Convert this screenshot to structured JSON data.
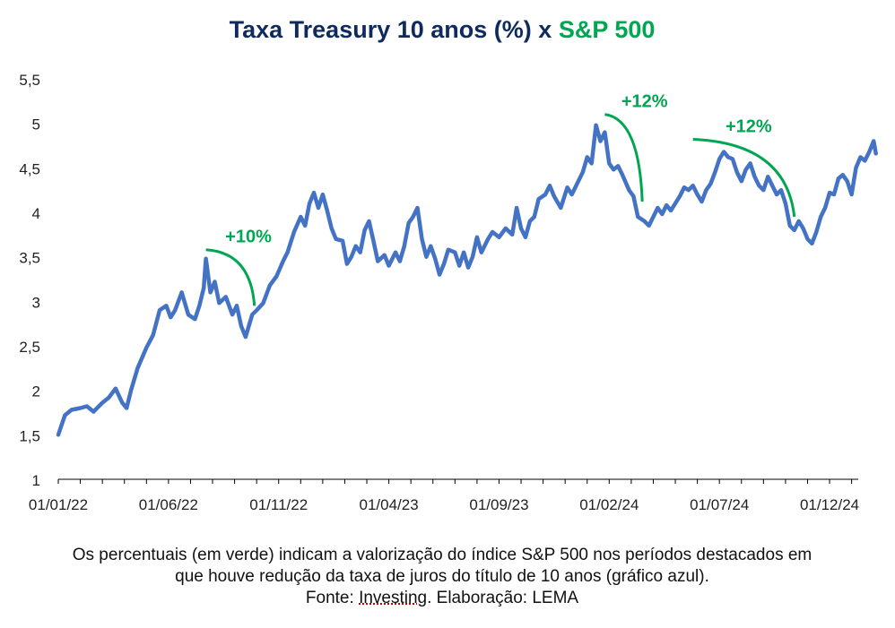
{
  "title": {
    "part1": "Taxa Treasury 10 anos (%)",
    "part2": " x ",
    "part3": "S&P 500",
    "color_main": "#0f2a5c",
    "color_accent": "#00a651"
  },
  "chart_data": {
    "type": "line",
    "title": "Taxa Treasury 10 anos (%) x S&P 500",
    "xlabel": "",
    "ylabel": "",
    "ylim": [
      1,
      5.5
    ],
    "y_ticks": [
      "1",
      "1,5",
      "2",
      "2,5",
      "3",
      "3,5",
      "4",
      "4,5",
      "5",
      "5,5"
    ],
    "x_ticks": [
      "01/01/22",
      "01/06/22",
      "01/11/22",
      "01/04/23",
      "01/09/23",
      "01/02/24",
      "01/07/24",
      "01/12/24"
    ],
    "x_range_months": [
      0,
      36.3
    ],
    "grid": false,
    "series": [
      {
        "color": "#4472c4",
        "points": [
          [
            0.0,
            1.5
          ],
          [
            0.3,
            1.72
          ],
          [
            0.6,
            1.78
          ],
          [
            1.0,
            1.8
          ],
          [
            1.3,
            1.82
          ],
          [
            1.6,
            1.76
          ],
          [
            2.0,
            1.86
          ],
          [
            2.3,
            1.92
          ],
          [
            2.6,
            2.02
          ],
          [
            2.9,
            1.86
          ],
          [
            3.1,
            1.8
          ],
          [
            3.3,
            2.0
          ],
          [
            3.6,
            2.25
          ],
          [
            4.0,
            2.48
          ],
          [
            4.3,
            2.62
          ],
          [
            4.6,
            2.9
          ],
          [
            4.9,
            2.95
          ],
          [
            5.1,
            2.82
          ],
          [
            5.3,
            2.9
          ],
          [
            5.6,
            3.1
          ],
          [
            5.9,
            2.85
          ],
          [
            6.2,
            2.8
          ],
          [
            6.4,
            2.95
          ],
          [
            6.6,
            3.15
          ],
          [
            6.7,
            3.48
          ],
          [
            6.9,
            3.1
          ],
          [
            7.1,
            3.22
          ],
          [
            7.3,
            2.98
          ],
          [
            7.6,
            3.05
          ],
          [
            7.9,
            2.85
          ],
          [
            8.1,
            2.95
          ],
          [
            8.3,
            2.72
          ],
          [
            8.5,
            2.6
          ],
          [
            8.8,
            2.85
          ],
          [
            9.0,
            2.9
          ],
          [
            9.3,
            2.98
          ],
          [
            9.6,
            3.18
          ],
          [
            9.9,
            3.28
          ],
          [
            10.2,
            3.45
          ],
          [
            10.4,
            3.55
          ],
          [
            10.7,
            3.78
          ],
          [
            11.0,
            3.95
          ],
          [
            11.2,
            3.85
          ],
          [
            11.4,
            4.1
          ],
          [
            11.6,
            4.22
          ],
          [
            11.8,
            4.05
          ],
          [
            12.0,
            4.2
          ],
          [
            12.2,
            4.02
          ],
          [
            12.4,
            3.82
          ],
          [
            12.6,
            3.7
          ],
          [
            12.9,
            3.68
          ],
          [
            13.1,
            3.42
          ],
          [
            13.3,
            3.5
          ],
          [
            13.5,
            3.62
          ],
          [
            13.7,
            3.55
          ],
          [
            13.9,
            3.8
          ],
          [
            14.1,
            3.9
          ],
          [
            14.3,
            3.68
          ],
          [
            14.5,
            3.45
          ],
          [
            14.8,
            3.52
          ],
          [
            15.0,
            3.4
          ],
          [
            15.3,
            3.55
          ],
          [
            15.5,
            3.45
          ],
          [
            15.7,
            3.62
          ],
          [
            15.9,
            3.88
          ],
          [
            16.1,
            3.95
          ],
          [
            16.3,
            4.05
          ],
          [
            16.5,
            3.7
          ],
          [
            16.7,
            3.5
          ],
          [
            16.9,
            3.62
          ],
          [
            17.1,
            3.48
          ],
          [
            17.3,
            3.3
          ],
          [
            17.5,
            3.42
          ],
          [
            17.7,
            3.58
          ],
          [
            18.0,
            3.55
          ],
          [
            18.2,
            3.4
          ],
          [
            18.4,
            3.55
          ],
          [
            18.6,
            3.38
          ],
          [
            18.8,
            3.5
          ],
          [
            19.0,
            3.72
          ],
          [
            19.2,
            3.55
          ],
          [
            19.5,
            3.7
          ],
          [
            19.7,
            3.78
          ],
          [
            20.0,
            3.72
          ],
          [
            20.3,
            3.82
          ],
          [
            20.6,
            3.75
          ],
          [
            20.8,
            4.05
          ],
          [
            21.0,
            3.82
          ],
          [
            21.2,
            3.72
          ],
          [
            21.4,
            3.9
          ],
          [
            21.6,
            3.95
          ],
          [
            21.8,
            4.15
          ],
          [
            22.1,
            4.2
          ],
          [
            22.3,
            4.3
          ],
          [
            22.5,
            4.18
          ],
          [
            22.8,
            4.05
          ],
          [
            23.1,
            4.28
          ],
          [
            23.3,
            4.2
          ],
          [
            23.6,
            4.35
          ],
          [
            23.8,
            4.45
          ],
          [
            24.0,
            4.62
          ],
          [
            24.2,
            4.55
          ],
          [
            24.4,
            4.98
          ],
          [
            24.6,
            4.8
          ],
          [
            24.8,
            4.9
          ],
          [
            25.0,
            4.55
          ],
          [
            25.2,
            4.48
          ],
          [
            25.4,
            4.52
          ],
          [
            25.6,
            4.42
          ],
          [
            25.9,
            4.25
          ],
          [
            26.1,
            4.18
          ],
          [
            26.3,
            3.95
          ],
          [
            26.6,
            3.9
          ],
          [
            26.8,
            3.85
          ],
          [
            27.0,
            3.95
          ],
          [
            27.2,
            4.05
          ],
          [
            27.4,
            3.98
          ],
          [
            27.6,
            4.08
          ],
          [
            27.8,
            4.02
          ],
          [
            28.0,
            4.1
          ],
          [
            28.2,
            4.18
          ],
          [
            28.4,
            4.28
          ],
          [
            28.6,
            4.25
          ],
          [
            28.8,
            4.3
          ],
          [
            29.0,
            4.2
          ],
          [
            29.2,
            4.12
          ],
          [
            29.4,
            4.25
          ],
          [
            29.6,
            4.32
          ],
          [
            29.8,
            4.45
          ],
          [
            30.0,
            4.6
          ],
          [
            30.2,
            4.68
          ],
          [
            30.4,
            4.62
          ],
          [
            30.6,
            4.6
          ],
          [
            30.8,
            4.45
          ],
          [
            31.0,
            4.35
          ],
          [
            31.2,
            4.48
          ],
          [
            31.4,
            4.55
          ],
          [
            31.6,
            4.4
          ],
          [
            31.8,
            4.3
          ],
          [
            32.0,
            4.25
          ],
          [
            32.2,
            4.4
          ],
          [
            32.4,
            4.3
          ],
          [
            32.6,
            4.2
          ],
          [
            32.8,
            4.25
          ],
          [
            33.0,
            4.1
          ],
          [
            33.2,
            3.85
          ],
          [
            33.4,
            3.8
          ],
          [
            33.6,
            3.9
          ],
          [
            33.8,
            3.82
          ],
          [
            34.0,
            3.7
          ],
          [
            34.2,
            3.65
          ],
          [
            34.4,
            3.78
          ],
          [
            34.6,
            3.95
          ],
          [
            34.8,
            4.05
          ],
          [
            35.0,
            4.22
          ],
          [
            35.2,
            4.2
          ],
          [
            35.4,
            4.38
          ],
          [
            35.6,
            4.42
          ],
          [
            35.8,
            4.35
          ],
          [
            36.0,
            4.2
          ],
          [
            36.2,
            4.5
          ],
          [
            36.4,
            4.62
          ],
          [
            36.6,
            4.58
          ],
          [
            36.8,
            4.68
          ],
          [
            37.0,
            4.8
          ],
          [
            37.1,
            4.66
          ]
        ]
      }
    ],
    "annotations": [
      {
        "label": "+10%",
        "x_start": 6.7,
        "y_start": 3.58,
        "x_end": 8.9,
        "y_end": 2.95
      },
      {
        "label": "+12%",
        "x_start": 24.8,
        "y_start": 5.1,
        "x_end": 26.5,
        "y_end": 4.12
      },
      {
        "label": "+12%",
        "x_start": 28.8,
        "y_start": 4.82,
        "x_end": 33.4,
        "y_end": 3.95
      }
    ],
    "annotation_color": "#00a651"
  },
  "caption": {
    "line1": "Os percentuais (em verde) indicam a valorização do índice S&P 500 nos períodos destacados em",
    "line2": "que houve redução da taxa de juros do título de 10 anos (gráfico azul).",
    "line3_prefix": "Fonte: ",
    "line3_link": "Investing",
    "line3_suffix": ". Elaboração: LEMA"
  }
}
